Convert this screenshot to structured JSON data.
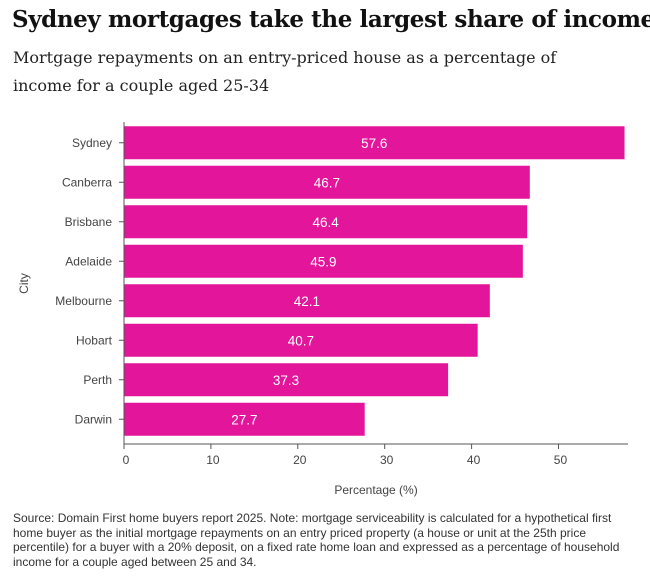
{
  "title": "Sydney mortgages take the largest share of income",
  "subtitle": "Mortgage repayments on an entry-priced house as a percentage of income for a couple aged 25-34",
  "source": "Source: Domain First home buyers report 2025. Note: mortgage serviceability is calculated for a hypothetical first home buyer as the initial mortgage repayments on an entry priced property (a house or unit at the 25th price percentile) for a buyer with a 20% deposit, on a fixed rate home loan and expressed as a percentage of household income for a couple aged between 25 and 34.",
  "chart_data": {
    "type": "bar",
    "orientation": "horizontal",
    "categories": [
      "Sydney",
      "Canberra",
      "Brisbane",
      "Adelaide",
      "Melbourne",
      "Hobart",
      "Perth",
      "Darwin"
    ],
    "values": [
      57.6,
      46.7,
      46.4,
      45.9,
      42.1,
      40.7,
      37.3,
      27.7
    ],
    "value_labels": [
      "57.6",
      "46.7",
      "46.4",
      "45.9",
      "42.1",
      "40.7",
      "37.3",
      "27.7"
    ],
    "xlabel": "Percentage (%)",
    "ylabel": "City",
    "xlim": [
      0,
      58
    ],
    "xticks": [
      "0",
      "10",
      "20",
      "30",
      "40",
      "50"
    ],
    "grid": false,
    "bar_color": "#E3169B"
  }
}
